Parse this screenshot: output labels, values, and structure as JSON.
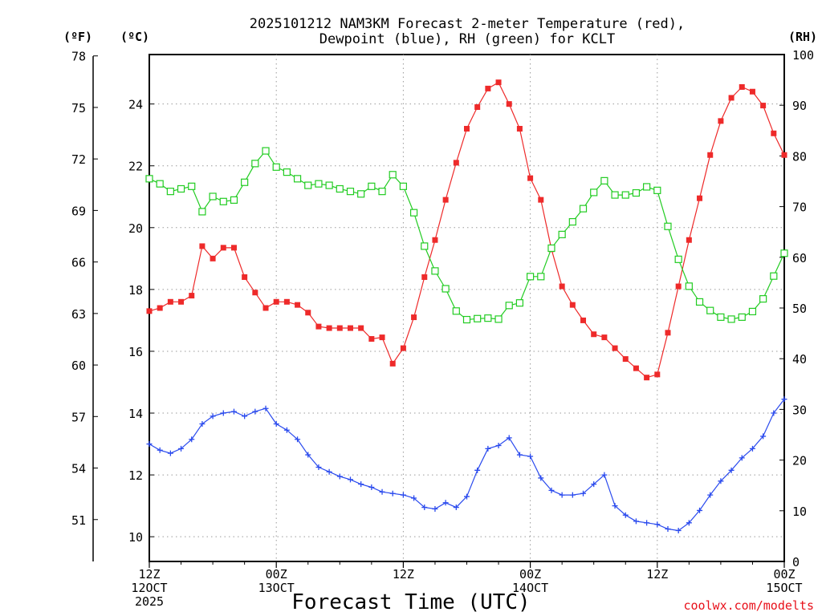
{
  "chart_data": {
    "type": "line",
    "title_line1": "2025101212 NAM3KM Forecast 2-meter Temperature (red),",
    "title_line2": "Dewpoint (blue), RH (green) for KCLT",
    "xlabel": "Forecast Time (UTC)",
    "credit": "coolwx.com/modelts",
    "units": {
      "fahrenheit": "(ºF)",
      "celsius": "(ºC)",
      "rh": "(RH)"
    },
    "x_range_hours": [
      0,
      60
    ],
    "x_ticks": [
      {
        "hour": 0,
        "line1": "12Z",
        "line2": "12OCT",
        "line3": "2025"
      },
      {
        "hour": 12,
        "line1": "00Z",
        "line2": "13OCT",
        "line3": ""
      },
      {
        "hour": 24,
        "line1": "12Z",
        "line2": "",
        "line3": ""
      },
      {
        "hour": 36,
        "line1": "00Z",
        "line2": "14OCT",
        "line3": ""
      },
      {
        "hour": 48,
        "line1": "12Z",
        "line2": "",
        "line3": ""
      },
      {
        "hour": 60,
        "line1": "00Z",
        "line2": "15OCT",
        "line3": ""
      }
    ],
    "celsius_axis": {
      "range": [
        9.2,
        25.6
      ],
      "ticks": [
        "10",
        "12",
        "14",
        "16",
        "18",
        "20",
        "22",
        "24"
      ]
    },
    "fahrenheit_axis": {
      "ticks": [
        "51",
        "54",
        "57",
        "60",
        "63",
        "66",
        "69",
        "72",
        "75",
        "78"
      ]
    },
    "rh_axis": {
      "range": [
        0,
        100
      ],
      "ticks": [
        "0",
        "10",
        "20",
        "30",
        "40",
        "50",
        "60",
        "70",
        "80",
        "90",
        "100"
      ]
    },
    "series": [
      {
        "name": "2-meter Temperature",
        "axis": "celsius",
        "color": "#ee2a2a",
        "marker": "filled-square",
        "values": [
          17.3,
          17.4,
          17.6,
          17.6,
          17.8,
          19.4,
          19.0,
          19.35,
          19.35,
          18.4,
          17.9,
          17.4,
          17.6,
          17.6,
          17.5,
          17.25,
          16.8,
          16.75,
          16.75,
          16.75,
          16.75,
          16.4,
          16.45,
          15.6,
          16.1,
          17.1,
          18.4,
          19.6,
          20.9,
          22.1,
          23.2,
          23.9,
          24.5,
          24.7,
          24.0,
          23.2,
          21.6,
          20.9,
          19.3,
          18.1,
          17.5,
          17.0,
          16.55,
          16.45,
          16.1,
          15.75,
          15.45,
          15.15,
          15.25,
          16.6,
          18.1,
          19.6,
          20.95,
          22.35,
          23.45,
          24.2,
          24.55,
          24.4,
          23.95,
          23.05,
          22.35
        ]
      },
      {
        "name": "Dewpoint",
        "axis": "celsius",
        "color": "#2a4aee",
        "marker": "plus",
        "values": [
          13.0,
          12.8,
          12.7,
          12.85,
          13.15,
          13.65,
          13.9,
          14.0,
          14.05,
          13.9,
          14.05,
          14.15,
          13.65,
          13.45,
          13.15,
          12.65,
          12.25,
          12.1,
          11.95,
          11.85,
          11.7,
          11.6,
          11.45,
          11.4,
          11.35,
          11.25,
          10.95,
          10.9,
          11.1,
          10.95,
          11.3,
          12.15,
          12.85,
          12.95,
          13.2,
          12.65,
          12.6,
          11.9,
          11.5,
          11.35,
          11.35,
          11.4,
          11.7,
          12.0,
          11.0,
          10.7,
          10.5,
          10.45,
          10.4,
          10.25,
          10.2,
          10.45,
          10.85,
          11.35,
          11.8,
          12.15,
          12.55,
          12.85,
          13.25,
          14.0,
          14.45
        ]
      },
      {
        "name": "RH",
        "axis": "rh",
        "color": "#22cc22",
        "marker": "open-square",
        "values": [
          75.5,
          74.5,
          73,
          73.5,
          74,
          69,
          72,
          71,
          71.3,
          74.8,
          78.5,
          81,
          77.8,
          76.8,
          75.5,
          74.2,
          74.5,
          74.2,
          73.5,
          73,
          72.5,
          74,
          73,
          76.3,
          74,
          68.8,
          62.2,
          57.3,
          53.8,
          49.4,
          47.7,
          47.9,
          48,
          47.8,
          50.5,
          51,
          56.2,
          56.2,
          61.8,
          64.5,
          67,
          69.6,
          72.8,
          75.1,
          72.3,
          72.3,
          72.7,
          73.9,
          73.2,
          66.1,
          59.6,
          54.3,
          51.2,
          49.5,
          48.2,
          47.8,
          48.2,
          49.3,
          51.8,
          56.3,
          60.8
        ]
      }
    ]
  }
}
